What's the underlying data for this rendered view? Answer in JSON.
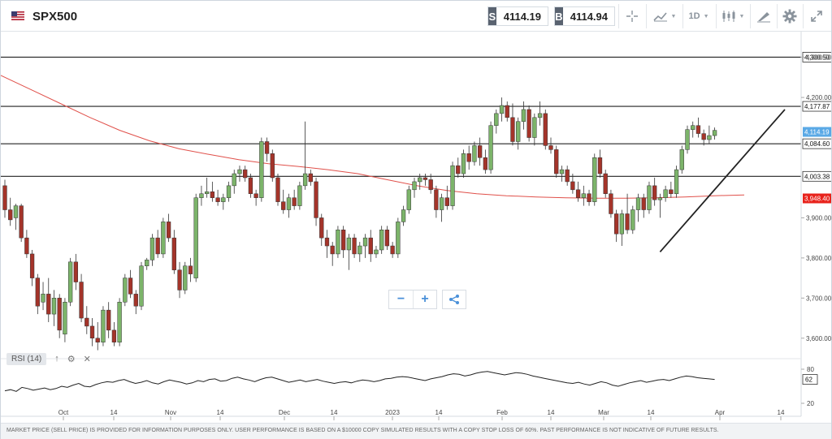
{
  "header": {
    "symbol": "SPX500",
    "sell_tag": "S",
    "sell_price": "4114.19",
    "buy_tag": "B",
    "buy_price": "4114.94",
    "timeframe": "1D",
    "icons": [
      "us-flag-icon",
      "crosshair-icon",
      "line-chart-icon",
      "candlestick-icon",
      "draw-pencil-icon",
      "gear-icon",
      "fullscreen-icon"
    ]
  },
  "colors": {
    "bull": "#7cb46a",
    "bear": "#a4342a",
    "moving_average": "#e0504a",
    "horizontal_levels": "#222222",
    "current_price_tag": "#5aa9e6",
    "ma_price_tag": "#e8231c"
  },
  "controls": {
    "zoom_out": "−",
    "zoom_in": "+",
    "share_icon": "share-icon"
  },
  "rsi": {
    "label": "RSI (14)",
    "value": "62",
    "levels": [
      "80",
      "20"
    ]
  },
  "chart_data": {
    "type": "candlestick",
    "title": "",
    "ylim": [
      3555,
      4360
    ],
    "y_ticks": [
      "3,600.00",
      "3,700.00",
      "3,800.00",
      "3,900.00",
      "4,200.00",
      "4,300.50"
    ],
    "x_ticks": [
      "Oct",
      "14",
      "Nov",
      "14",
      "Dec",
      "14",
      "2023",
      "14",
      "Feb",
      "14",
      "Mar",
      "14",
      "Apr",
      "14"
    ],
    "horizontal_levels": [
      {
        "value": 4300.5,
        "label": "4,300.50"
      },
      {
        "value": 4177.87,
        "label": "4,177.87"
      },
      {
        "value": 4084.6,
        "label": "4,084.60"
      },
      {
        "value": 4003.38,
        "label": "4,003.38"
      }
    ],
    "current_price": {
      "value": 4114.19,
      "label": "4,114.19"
    },
    "moving_average_price": {
      "value": 3948.4,
      "label": "3,948.40"
    },
    "trendline": {
      "from": {
        "date": "2023-03-13",
        "price": 3815
      },
      "to": {
        "date": "2023-04-14",
        "price": 4170
      }
    },
    "moving_average": [
      4255,
      4220,
      4185,
      4150,
      4118,
      4092,
      4072,
      4058,
      4045,
      4035,
      4028,
      4020,
      4010,
      3995,
      3980,
      3968,
      3960,
      3955,
      3952,
      3950,
      3949,
      3949,
      3950,
      3952,
      3955,
      3957
    ],
    "candles": [
      {
        "o": 3980,
        "h": 3995,
        "l": 3900,
        "c": 3920
      },
      {
        "o": 3920,
        "h": 3950,
        "l": 3880,
        "c": 3895
      },
      {
        "o": 3900,
        "h": 3935,
        "l": 3870,
        "c": 3930
      },
      {
        "o": 3930,
        "h": 3935,
        "l": 3840,
        "c": 3850
      },
      {
        "o": 3850,
        "h": 3870,
        "l": 3800,
        "c": 3810
      },
      {
        "o": 3810,
        "h": 3820,
        "l": 3730,
        "c": 3750
      },
      {
        "o": 3750,
        "h": 3760,
        "l": 3660,
        "c": 3680
      },
      {
        "o": 3690,
        "h": 3740,
        "l": 3670,
        "c": 3710
      },
      {
        "o": 3710,
        "h": 3750,
        "l": 3640,
        "c": 3660
      },
      {
        "o": 3660,
        "h": 3720,
        "l": 3630,
        "c": 3700
      },
      {
        "o": 3700,
        "h": 3710,
        "l": 3600,
        "c": 3620
      },
      {
        "o": 3610,
        "h": 3700,
        "l": 3590,
        "c": 3690
      },
      {
        "o": 3690,
        "h": 3800,
        "l": 3680,
        "c": 3790
      },
      {
        "o": 3790,
        "h": 3810,
        "l": 3720,
        "c": 3740
      },
      {
        "o": 3740,
        "h": 3760,
        "l": 3640,
        "c": 3650
      },
      {
        "o": 3650,
        "h": 3680,
        "l": 3610,
        "c": 3630
      },
      {
        "o": 3630,
        "h": 3650,
        "l": 3580,
        "c": 3600
      },
      {
        "o": 3600,
        "h": 3640,
        "l": 3570,
        "c": 3590
      },
      {
        "o": 3590,
        "h": 3680,
        "l": 3580,
        "c": 3670
      },
      {
        "o": 3670,
        "h": 3690,
        "l": 3600,
        "c": 3620
      },
      {
        "o": 3620,
        "h": 3640,
        "l": 3580,
        "c": 3590
      },
      {
        "o": 3590,
        "h": 3700,
        "l": 3580,
        "c": 3690
      },
      {
        "o": 3690,
        "h": 3760,
        "l": 3680,
        "c": 3750
      },
      {
        "o": 3750,
        "h": 3770,
        "l": 3700,
        "c": 3710
      },
      {
        "o": 3710,
        "h": 3720,
        "l": 3660,
        "c": 3680
      },
      {
        "o": 3680,
        "h": 3790,
        "l": 3670,
        "c": 3780
      },
      {
        "o": 3780,
        "h": 3800,
        "l": 3770,
        "c": 3795
      },
      {
        "o": 3795,
        "h": 3860,
        "l": 3780,
        "c": 3850
      },
      {
        "o": 3850,
        "h": 3870,
        "l": 3800,
        "c": 3810
      },
      {
        "o": 3810,
        "h": 3900,
        "l": 3800,
        "c": 3890
      },
      {
        "o": 3890,
        "h": 3910,
        "l": 3840,
        "c": 3850
      },
      {
        "o": 3850,
        "h": 3870,
        "l": 3760,
        "c": 3770
      },
      {
        "o": 3770,
        "h": 3790,
        "l": 3700,
        "c": 3720
      },
      {
        "o": 3720,
        "h": 3790,
        "l": 3710,
        "c": 3780
      },
      {
        "o": 3780,
        "h": 3800,
        "l": 3740,
        "c": 3760
      },
      {
        "o": 3750,
        "h": 3960,
        "l": 3740,
        "c": 3950
      },
      {
        "o": 3950,
        "h": 3980,
        "l": 3930,
        "c": 3960
      },
      {
        "o": 3960,
        "h": 4000,
        "l": 3950,
        "c": 3965
      },
      {
        "o": 3965,
        "h": 3990,
        "l": 3940,
        "c": 3950
      },
      {
        "o": 3950,
        "h": 3970,
        "l": 3930,
        "c": 3940
      },
      {
        "o": 3940,
        "h": 3960,
        "l": 3920,
        "c": 3950
      },
      {
        "o": 3950,
        "h": 3990,
        "l": 3940,
        "c": 3980
      },
      {
        "o": 3980,
        "h": 4020,
        "l": 3960,
        "c": 4010
      },
      {
        "o": 4010,
        "h": 4030,
        "l": 3990,
        "c": 4020
      },
      {
        "o": 4020,
        "h": 4030,
        "l": 3990,
        "c": 4000
      },
      {
        "o": 4000,
        "h": 4010,
        "l": 3950,
        "c": 3960
      },
      {
        "o": 3960,
        "h": 3970,
        "l": 3930,
        "c": 3950
      },
      {
        "o": 3950,
        "h": 4100,
        "l": 3940,
        "c": 4090
      },
      {
        "o": 4090,
        "h": 4100,
        "l": 4040,
        "c": 4060
      },
      {
        "o": 4060,
        "h": 4070,
        "l": 3990,
        "c": 4000
      },
      {
        "o": 4000,
        "h": 4010,
        "l": 3930,
        "c": 3940
      },
      {
        "o": 3940,
        "h": 3970,
        "l": 3910,
        "c": 3920
      },
      {
        "o": 3920,
        "h": 3960,
        "l": 3900,
        "c": 3950
      },
      {
        "o": 3950,
        "h": 3970,
        "l": 3920,
        "c": 3930
      },
      {
        "o": 3930,
        "h": 3990,
        "l": 3920,
        "c": 3980
      },
      {
        "o": 3980,
        "h": 4140,
        "l": 3970,
        "c": 4010
      },
      {
        "o": 4010,
        "h": 4020,
        "l": 3980,
        "c": 3990
      },
      {
        "o": 3990,
        "h": 4000,
        "l": 3880,
        "c": 3900
      },
      {
        "o": 3900,
        "h": 3910,
        "l": 3830,
        "c": 3850
      },
      {
        "o": 3850,
        "h": 3870,
        "l": 3800,
        "c": 3830
      },
      {
        "o": 3830,
        "h": 3840,
        "l": 3780,
        "c": 3810
      },
      {
        "o": 3810,
        "h": 3880,
        "l": 3800,
        "c": 3870
      },
      {
        "o": 3870,
        "h": 3880,
        "l": 3800,
        "c": 3820
      },
      {
        "o": 3820,
        "h": 3860,
        "l": 3770,
        "c": 3850
      },
      {
        "o": 3850,
        "h": 3860,
        "l": 3800,
        "c": 3810
      },
      {
        "o": 3810,
        "h": 3840,
        "l": 3790,
        "c": 3830
      },
      {
        "o": 3830,
        "h": 3860,
        "l": 3800,
        "c": 3850
      },
      {
        "o": 3850,
        "h": 3870,
        "l": 3790,
        "c": 3810
      },
      {
        "o": 3810,
        "h": 3830,
        "l": 3800,
        "c": 3820
      },
      {
        "o": 3820,
        "h": 3880,
        "l": 3810,
        "c": 3870
      },
      {
        "o": 3870,
        "h": 3880,
        "l": 3820,
        "c": 3830
      },
      {
        "o": 3830,
        "h": 3840,
        "l": 3800,
        "c": 3810
      },
      {
        "o": 3810,
        "h": 3900,
        "l": 3800,
        "c": 3890
      },
      {
        "o": 3890,
        "h": 3930,
        "l": 3880,
        "c": 3920
      },
      {
        "o": 3920,
        "h": 3980,
        "l": 3910,
        "c": 3970
      },
      {
        "o": 3970,
        "h": 4000,
        "l": 3950,
        "c": 3990
      },
      {
        "o": 3990,
        "h": 4010,
        "l": 3970,
        "c": 4000
      },
      {
        "o": 4000,
        "h": 4010,
        "l": 3980,
        "c": 3995
      },
      {
        "o": 3995,
        "h": 4010,
        "l": 3960,
        "c": 3970
      },
      {
        "o": 3970,
        "h": 3980,
        "l": 3900,
        "c": 3920
      },
      {
        "o": 3920,
        "h": 3960,
        "l": 3890,
        "c": 3950
      },
      {
        "o": 3950,
        "h": 3980,
        "l": 3920,
        "c": 3930
      },
      {
        "o": 3930,
        "h": 4040,
        "l": 3920,
        "c": 4030
      },
      {
        "o": 4030,
        "h": 4050,
        "l": 4000,
        "c": 4010
      },
      {
        "o": 4010,
        "h": 4070,
        "l": 4000,
        "c": 4060
      },
      {
        "o": 4060,
        "h": 4080,
        "l": 4020,
        "c": 4040
      },
      {
        "o": 4040,
        "h": 4090,
        "l": 4030,
        "c": 4080
      },
      {
        "o": 4080,
        "h": 4100,
        "l": 4030,
        "c": 4050
      },
      {
        "o": 4050,
        "h": 4070,
        "l": 4010,
        "c": 4020
      },
      {
        "o": 4020,
        "h": 4140,
        "l": 4010,
        "c": 4130
      },
      {
        "o": 4130,
        "h": 4170,
        "l": 4110,
        "c": 4160
      },
      {
        "o": 4160,
        "h": 4200,
        "l": 4140,
        "c": 4180
      },
      {
        "o": 4180,
        "h": 4190,
        "l": 4140,
        "c": 4150
      },
      {
        "o": 4150,
        "h": 4185,
        "l": 4080,
        "c": 4090
      },
      {
        "o": 4090,
        "h": 4150,
        "l": 4070,
        "c": 4140
      },
      {
        "o": 4140,
        "h": 4190,
        "l": 4120,
        "c": 4170
      },
      {
        "o": 4170,
        "h": 4180,
        "l": 4090,
        "c": 4100
      },
      {
        "o": 4100,
        "h": 4160,
        "l": 4080,
        "c": 4150
      },
      {
        "o": 4150,
        "h": 4190,
        "l": 4130,
        "c": 4160
      },
      {
        "o": 4160,
        "h": 4170,
        "l": 4070,
        "c": 4080
      },
      {
        "o": 4080,
        "h": 4100,
        "l": 4060,
        "c": 4070
      },
      {
        "o": 4070,
        "h": 4080,
        "l": 4000,
        "c": 4010
      },
      {
        "o": 4010,
        "h": 4030,
        "l": 3990,
        "c": 4020
      },
      {
        "o": 4020,
        "h": 4030,
        "l": 3980,
        "c": 3990
      },
      {
        "o": 3990,
        "h": 4010,
        "l": 3960,
        "c": 3970
      },
      {
        "o": 3970,
        "h": 3990,
        "l": 3940,
        "c": 3950
      },
      {
        "o": 3950,
        "h": 3980,
        "l": 3930,
        "c": 3960
      },
      {
        "o": 3960,
        "h": 3970,
        "l": 3930,
        "c": 3940
      },
      {
        "o": 3940,
        "h": 4060,
        "l": 3930,
        "c": 4050
      },
      {
        "o": 4050,
        "h": 4070,
        "l": 4000,
        "c": 4010
      },
      {
        "o": 4010,
        "h": 4020,
        "l": 3950,
        "c": 3960
      },
      {
        "o": 3960,
        "h": 3970,
        "l": 3900,
        "c": 3910
      },
      {
        "o": 3910,
        "h": 3920,
        "l": 3840,
        "c": 3860
      },
      {
        "o": 3860,
        "h": 3920,
        "l": 3830,
        "c": 3910
      },
      {
        "o": 3910,
        "h": 3960,
        "l": 3860,
        "c": 3870
      },
      {
        "o": 3870,
        "h": 3930,
        "l": 3860,
        "c": 3920
      },
      {
        "o": 3920,
        "h": 3960,
        "l": 3890,
        "c": 3950
      },
      {
        "o": 3950,
        "h": 3960,
        "l": 3900,
        "c": 3920
      },
      {
        "o": 3920,
        "h": 3990,
        "l": 3910,
        "c": 3980
      },
      {
        "o": 3980,
        "h": 4000,
        "l": 3930,
        "c": 3945
      },
      {
        "o": 3945,
        "h": 3960,
        "l": 3900,
        "c": 3950
      },
      {
        "o": 3950,
        "h": 3980,
        "l": 3940,
        "c": 3970
      },
      {
        "o": 3970,
        "h": 3990,
        "l": 3950,
        "c": 3960
      },
      {
        "o": 3960,
        "h": 4030,
        "l": 3950,
        "c": 4020
      },
      {
        "o": 4020,
        "h": 4080,
        "l": 4010,
        "c": 4070
      },
      {
        "o": 4070,
        "h": 4130,
        "l": 4060,
        "c": 4120
      },
      {
        "o": 4120,
        "h": 4140,
        "l": 4100,
        "c": 4130
      },
      {
        "o": 4130,
        "h": 4150,
        "l": 4100,
        "c": 4110
      },
      {
        "o": 4110,
        "h": 4120,
        "l": 4080,
        "c": 4095
      },
      {
        "o": 4095,
        "h": 4130,
        "l": 4085,
        "c": 4105
      },
      {
        "o": 4105,
        "h": 4125,
        "l": 4095,
        "c": 4118
      }
    ]
  },
  "rsi_data": [
    42,
    44,
    41,
    48,
    46,
    43,
    45,
    47,
    44,
    46,
    50,
    48,
    52,
    55,
    50,
    49,
    53,
    56,
    58,
    57,
    60,
    62,
    58,
    55,
    57,
    60,
    56,
    54,
    58,
    61,
    59,
    57,
    54,
    56,
    60,
    58,
    62,
    63,
    59,
    60,
    64,
    66,
    63,
    61,
    58,
    62,
    65,
    66,
    63,
    60,
    57,
    59,
    61,
    58,
    60,
    62,
    59,
    57,
    55,
    57,
    58,
    56,
    59,
    61,
    60,
    58,
    60,
    63,
    64,
    66,
    67,
    66,
    64,
    62,
    60,
    63,
    65,
    67,
    70,
    72,
    71,
    68,
    70,
    73,
    75,
    76,
    74,
    72,
    70,
    72,
    74,
    73,
    71,
    68,
    66,
    64,
    62,
    60,
    58,
    56,
    55,
    57,
    54,
    52,
    55,
    58,
    56,
    52,
    50,
    53,
    56,
    58,
    60,
    57,
    59,
    61,
    62,
    60,
    63,
    66,
    68,
    67,
    65,
    64,
    63,
    62
  ],
  "footer": {
    "disclaimer": "MARKET PRICE (SELL PRICE) IS PROVIDED FOR INFORMATION PURPOSES ONLY. USER PERFORMANCE IS BASED ON A $10000 COPY SIMULATED RESULTS WITH A COPY STOP LOSS OF 60%. PAST PERFORMANCE IS NOT INDICATIVE OF FUTURE RESULTS."
  }
}
